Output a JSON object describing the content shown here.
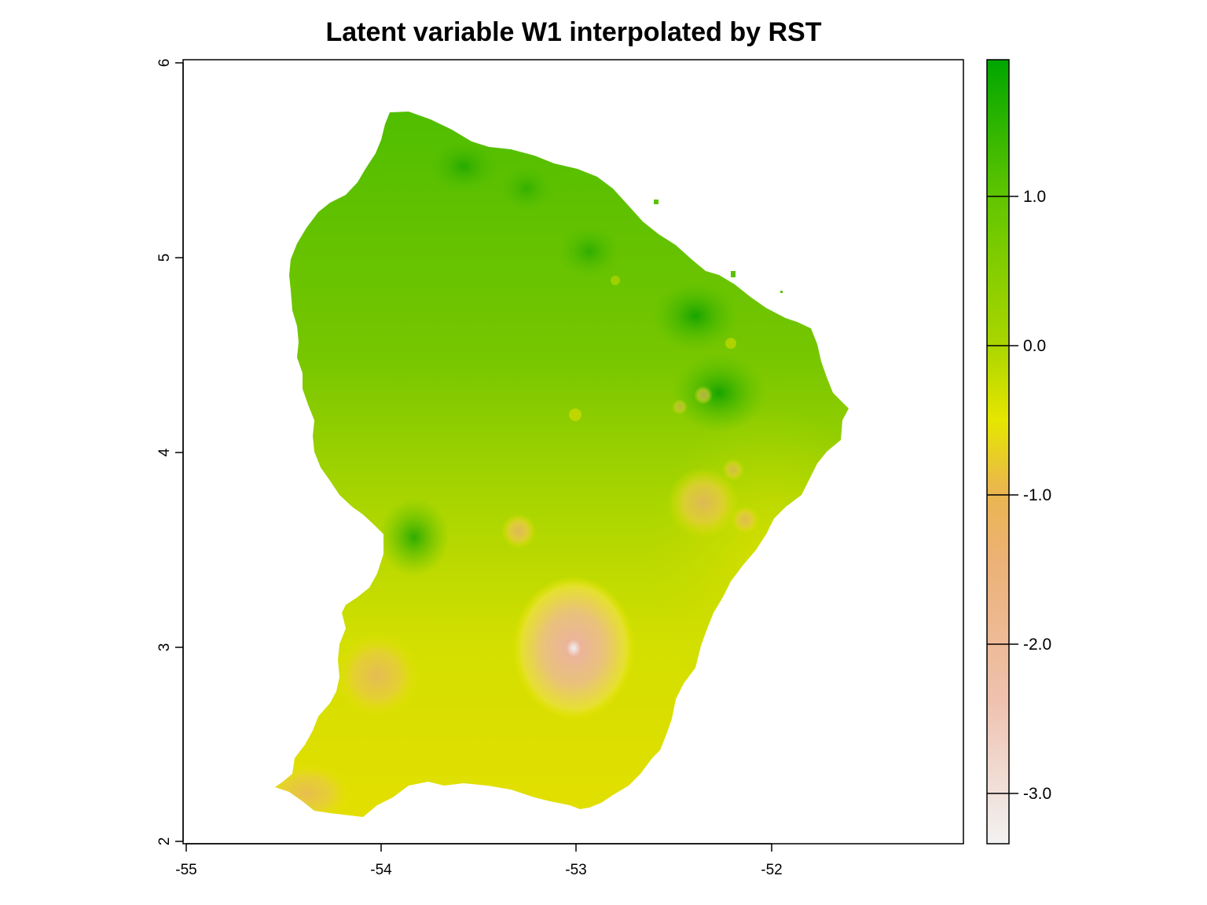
{
  "title": "Latent variable W1 interpolated by RST",
  "x_ticks": [
    "-55",
    "-54",
    "-53",
    "-52"
  ],
  "y_ticks": [
    "2",
    "3",
    "4",
    "5",
    "6"
  ],
  "legend_ticks": [
    "1.0",
    "0.0",
    "-1.0",
    "-2.0",
    "-3.0"
  ],
  "colors": {
    "high": "#00a600",
    "mid_high": "#63c600",
    "zero": "#a8d500",
    "mid": "#e6e600",
    "low": "#eab64e",
    "lower": "#ecb176",
    "lowest": "#f2f2f2"
  },
  "map": {
    "x_range": [
      -55.0,
      -51.0
    ],
    "y_range": [
      2.0,
      6.0
    ],
    "value_range": [
      -3.35,
      1.9
    ],
    "region": "French Guiana"
  }
}
